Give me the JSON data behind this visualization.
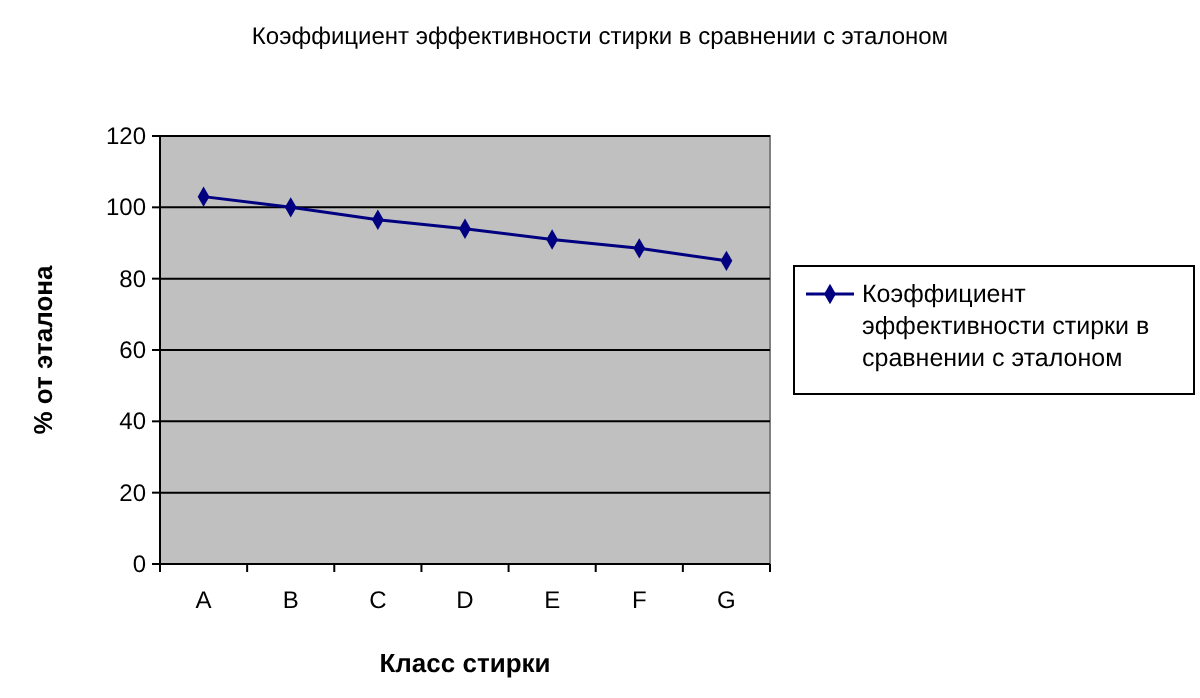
{
  "chart_data": {
    "type": "line",
    "title": "Коэффициент эффективности стирки в сравнении с эталоном",
    "xlabel": "Класс стирки",
    "ylabel": "% от эталона",
    "categories": [
      "A",
      "B",
      "C",
      "D",
      "E",
      "F",
      "G"
    ],
    "series": [
      {
        "name": "Коэффициент эффективности стирки в сравнении с эталоном",
        "color": "#000080",
        "values": [
          103,
          100,
          96.5,
          94,
          91,
          88.5,
          85
        ]
      }
    ],
    "ylim": [
      0,
      120
    ],
    "yticks": [
      0,
      20,
      40,
      60,
      80,
      100,
      120
    ],
    "grid": "y",
    "legend": "right",
    "marker": "diamond",
    "line_style": "solid"
  }
}
